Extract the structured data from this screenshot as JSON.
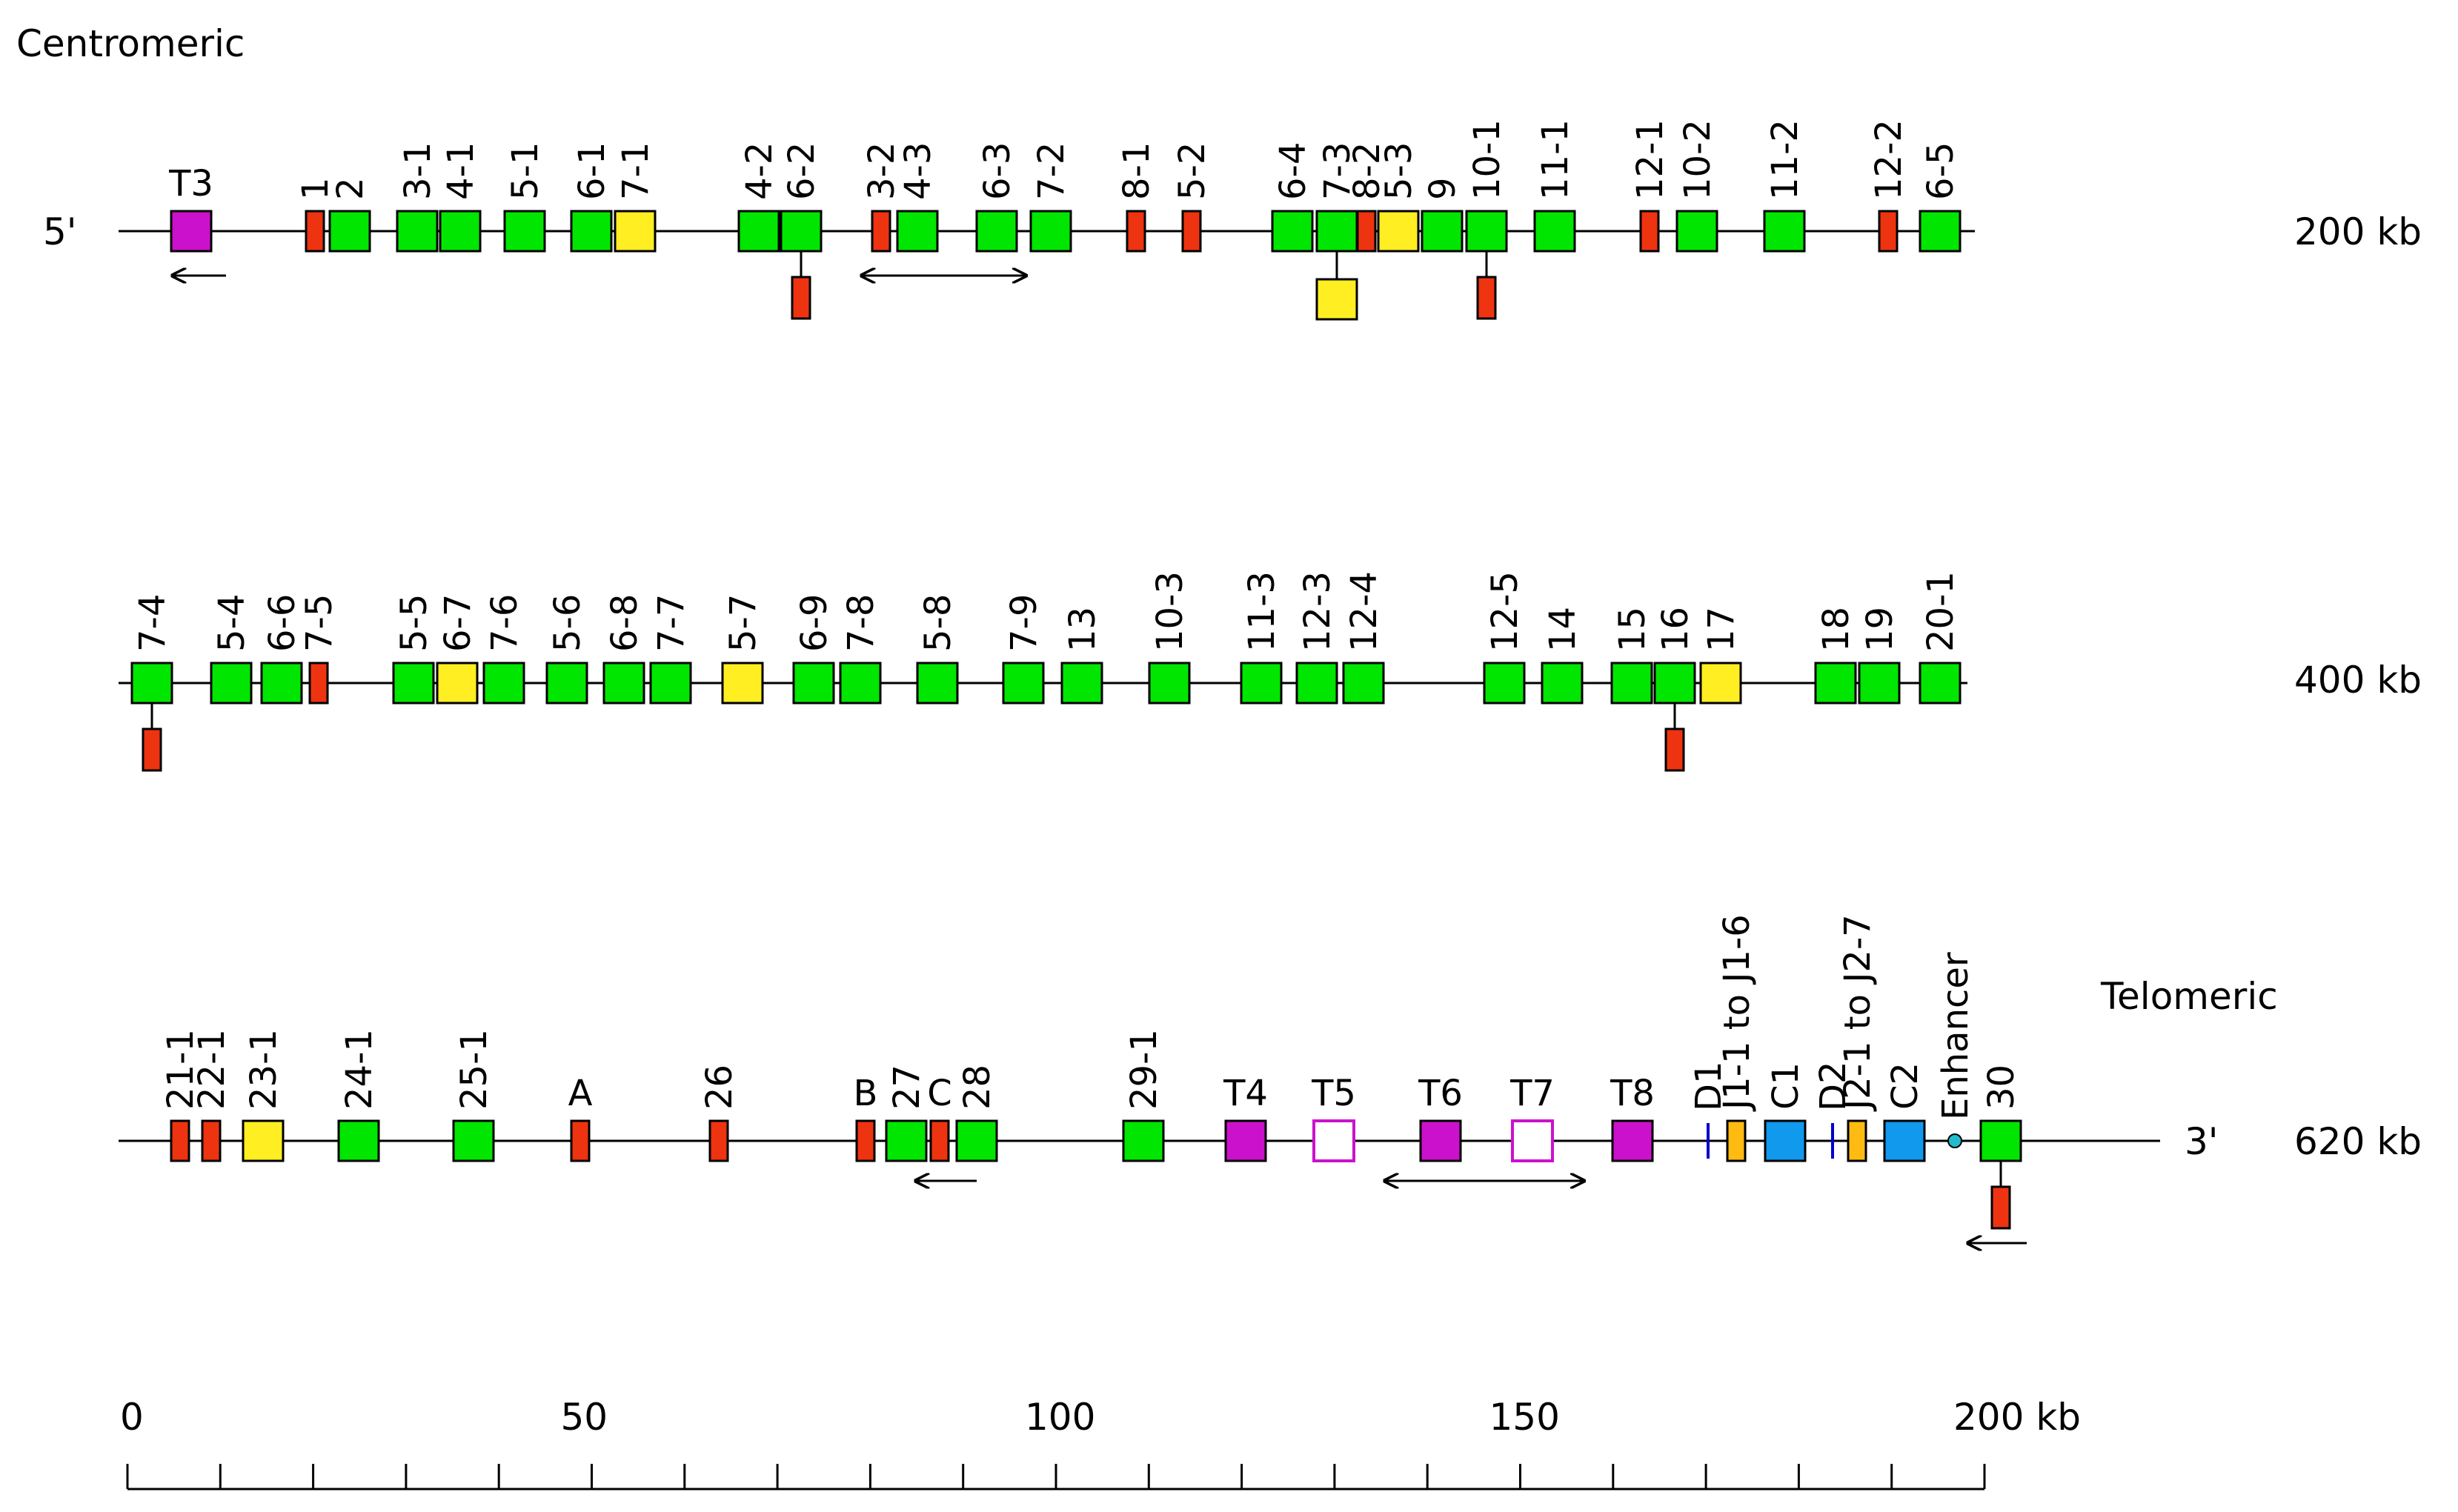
{
  "diagram": {
    "title_left": "Centromeric",
    "title_right": "Telomeric",
    "end_5": "5'",
    "end_3": "3'",
    "colors": {
      "functional": "#00e600",
      "orf": "#ffee22",
      "pseudogene": "#ee3311",
      "trypsinogen": "#cc11cc",
      "constant": "#1199ee",
      "join": "#ffbb11",
      "diversity": "#0000cc",
      "enhancer": "#22bbcc"
    },
    "rows": [
      {
        "kb_label": "200 kb",
        "labels": [
          "T3",
          "1",
          "2",
          "3-1",
          "4-1",
          "5-1",
          "6-1",
          "7-1",
          "4-2",
          "6-2",
          "3-2",
          "4-3",
          "6-3",
          "7-2",
          "8-1",
          "5-2",
          "6-4",
          "7-3",
          "8-2",
          "5-3",
          "9",
          "10-1",
          "11-1",
          "12-1",
          "10-2",
          "11-2",
          "12-2",
          "6-5"
        ]
      },
      {
        "kb_label": "400 kb",
        "labels": [
          "7-4",
          "5-4",
          "6-6",
          "7-5",
          "5-5",
          "6-7",
          "7-6",
          "5-6",
          "6-8",
          "7-7",
          "5-7",
          "6-9",
          "7-8",
          "5-8",
          "7-9",
          "13",
          "10-3",
          "11-3",
          "12-3",
          "12-4",
          "12-5",
          "14",
          "15",
          "16",
          "17",
          "18",
          "19",
          "20-1"
        ]
      },
      {
        "kb_label": "620 kb",
        "labels": [
          "21-1",
          "22-1",
          "23-1",
          "24-1",
          "25-1",
          "A",
          "26",
          "B",
          "27",
          "C",
          "28",
          "29-1",
          "T4",
          "T5",
          "T6",
          "T7",
          "T8",
          "D1",
          "J1-1 to J1-6",
          "C1",
          "D2",
          "J2-1 to J2-7",
          "C2",
          "Enhancer",
          "30"
        ]
      }
    ],
    "scale": {
      "ticks": [
        "0",
        "50",
        "100",
        "150",
        "200 kb"
      ],
      "range_kb": [
        0,
        200
      ],
      "minor_step_kb": 10
    }
  }
}
